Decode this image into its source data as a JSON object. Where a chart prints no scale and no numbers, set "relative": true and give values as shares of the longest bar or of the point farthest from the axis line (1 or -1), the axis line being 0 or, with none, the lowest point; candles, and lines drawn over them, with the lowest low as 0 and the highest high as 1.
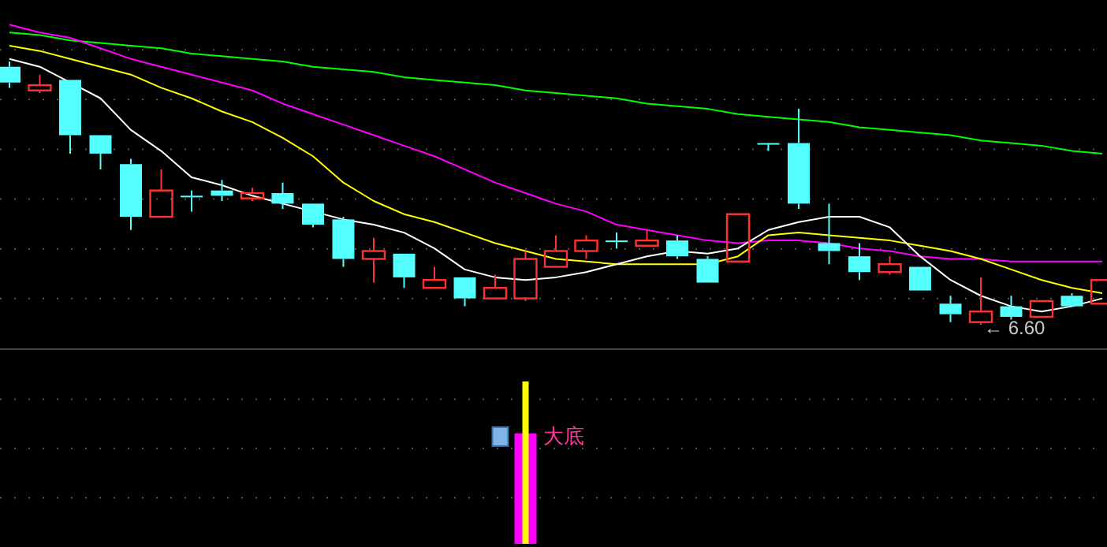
{
  "chart_data": [
    {
      "type": "candlestick",
      "relative": true,
      "grid": "y",
      "categories": [
        null,
        null,
        null,
        null,
        null,
        null,
        null,
        null,
        null,
        null,
        null,
        null,
        null,
        null,
        null,
        null,
        null,
        null,
        null,
        null,
        null,
        null,
        null,
        null,
        null,
        null,
        null,
        null,
        null,
        null,
        null,
        null,
        null,
        null,
        null,
        null,
        null
      ],
      "ohlc": [
        [
          0.98,
          1.0,
          0.9,
          0.92
        ],
        [
          0.89,
          0.95,
          0.88,
          0.91
        ],
        [
          0.93,
          0.93,
          0.65,
          0.72
        ],
        [
          0.72,
          0.72,
          0.59,
          0.65
        ],
        [
          0.61,
          0.63,
          0.36,
          0.41
        ],
        [
          0.41,
          0.59,
          0.41,
          0.51
        ],
        [
          0.49,
          0.51,
          0.43,
          0.49
        ],
        [
          0.51,
          0.55,
          0.47,
          0.49
        ],
        [
          0.48,
          0.52,
          0.47,
          0.5
        ],
        [
          0.5,
          0.54,
          0.44,
          0.46
        ],
        [
          0.46,
          0.46,
          0.37,
          0.38
        ],
        [
          0.4,
          0.41,
          0.22,
          0.25
        ],
        [
          0.25,
          0.33,
          0.16,
          0.28
        ],
        [
          0.27,
          0.27,
          0.14,
          0.18
        ],
        [
          0.14,
          0.22,
          0.14,
          0.17
        ],
        [
          0.18,
          0.18,
          0.07,
          0.1
        ],
        [
          0.1,
          0.19,
          0.1,
          0.14
        ],
        [
          0.1,
          0.28,
          0.09,
          0.25
        ],
        [
          0.22,
          0.34,
          0.22,
          0.28
        ],
        [
          0.28,
          0.34,
          0.25,
          0.32
        ],
        [
          0.32,
          0.35,
          0.29,
          0.32
        ],
        [
          0.3,
          0.36,
          0.3,
          0.32
        ],
        [
          0.32,
          0.34,
          0.25,
          0.26
        ],
        [
          0.25,
          0.26,
          0.16,
          0.16
        ],
        [
          0.24,
          0.42,
          0.24,
          0.42
        ],
        [
          0.69,
          0.69,
          0.66,
          0.69
        ],
        [
          0.69,
          0.82,
          0.44,
          0.46
        ],
        [
          0.31,
          0.46,
          0.23,
          0.28
        ],
        [
          0.26,
          0.31,
          0.17,
          0.2
        ],
        [
          0.2,
          0.26,
          0.19,
          0.23
        ],
        [
          0.22,
          0.22,
          0.13,
          0.13
        ],
        [
          0.08,
          0.11,
          0.01,
          0.04
        ],
        [
          0.01,
          0.18,
          0.0,
          0.05
        ],
        [
          0.07,
          0.11,
          0.02,
          0.03
        ],
        [
          0.03,
          0.09,
          0.03,
          0.09
        ],
        [
          0.11,
          0.12,
          0.07,
          0.07
        ],
        [
          0.08,
          0.17,
          0.08,
          0.17
        ]
      ],
      "series": [
        {
          "type": "line",
          "color": "#00ff00",
          "values": [
            1.11,
            1.1,
            1.08,
            1.07,
            1.06,
            1.05,
            1.03,
            1.02,
            1.01,
            1.0,
            0.98,
            0.97,
            0.96,
            0.94,
            0.93,
            0.92,
            0.91,
            0.89,
            0.88,
            0.87,
            0.86,
            0.84,
            0.83,
            0.82,
            0.8,
            0.79,
            0.78,
            0.77,
            0.75,
            0.74,
            0.73,
            0.72,
            0.7,
            0.69,
            0.68,
            0.66,
            0.65
          ]
        },
        {
          "type": "line",
          "color": "#ff00ff",
          "values": [
            1.14,
            1.11,
            1.09,
            1.05,
            1.01,
            0.98,
            0.95,
            0.92,
            0.89,
            0.84,
            0.8,
            0.76,
            0.72,
            0.68,
            0.64,
            0.59,
            0.54,
            0.5,
            0.46,
            0.43,
            0.38,
            0.36,
            0.34,
            0.32,
            0.31,
            0.32,
            0.32,
            0.31,
            0.29,
            0.28,
            0.26,
            0.25,
            0.25,
            0.24,
            0.24,
            0.24,
            0.24
          ]
        },
        {
          "type": "line",
          "color": "#ffff00",
          "values": [
            1.06,
            1.04,
            1.01,
            0.98,
            0.95,
            0.9,
            0.86,
            0.81,
            0.77,
            0.71,
            0.64,
            0.54,
            0.47,
            0.42,
            0.39,
            0.35,
            0.31,
            0.28,
            0.25,
            0.24,
            0.23,
            0.23,
            0.23,
            0.23,
            0.26,
            0.34,
            0.35,
            0.34,
            0.33,
            0.32,
            0.3,
            0.28,
            0.25,
            0.21,
            0.17,
            0.14,
            0.12
          ]
        },
        {
          "type": "line",
          "color": "#ffffff",
          "values": [
            1.01,
            0.98,
            0.92,
            0.86,
            0.74,
            0.66,
            0.56,
            0.53,
            0.49,
            0.46,
            0.43,
            0.4,
            0.38,
            0.35,
            0.29,
            0.21,
            0.18,
            0.17,
            0.18,
            0.2,
            0.23,
            0.26,
            0.28,
            0.27,
            0.29,
            0.36,
            0.39,
            0.41,
            0.41,
            0.37,
            0.26,
            0.17,
            0.11,
            0.07,
            0.05,
            0.07,
            0.1
          ]
        }
      ],
      "annotations": [
        "← 6.60"
      ]
    },
    {
      "type": "bar",
      "relative": true,
      "grid": "y",
      "categories": [
        null,
        null,
        null,
        null,
        null,
        null,
        null,
        null,
        null,
        null,
        null,
        null,
        null,
        null,
        null,
        null,
        null,
        null,
        null,
        null,
        null,
        null,
        null,
        null,
        null,
        null,
        null,
        null,
        null,
        null,
        null,
        null,
        null,
        null,
        null,
        null,
        null
      ],
      "series": [
        {
          "color": "#ff00ff",
          "values": [
            null,
            null,
            null,
            null,
            null,
            null,
            null,
            null,
            null,
            null,
            null,
            null,
            null,
            null,
            null,
            null,
            null,
            0.68,
            null,
            null,
            null,
            null,
            null,
            null,
            null,
            null,
            null,
            null,
            null,
            null,
            null,
            null,
            null,
            null,
            null,
            null,
            null
          ]
        },
        {
          "color": "#ffff00",
          "values": [
            null,
            null,
            null,
            null,
            null,
            null,
            null,
            null,
            null,
            null,
            null,
            null,
            null,
            null,
            null,
            null,
            null,
            1,
            null,
            null,
            null,
            null,
            null,
            null,
            null,
            null,
            null,
            null,
            null,
            null,
            null,
            null,
            null,
            null,
            null,
            null,
            null
          ]
        }
      ],
      "annotations": [
        "大底"
      ]
    }
  ]
}
